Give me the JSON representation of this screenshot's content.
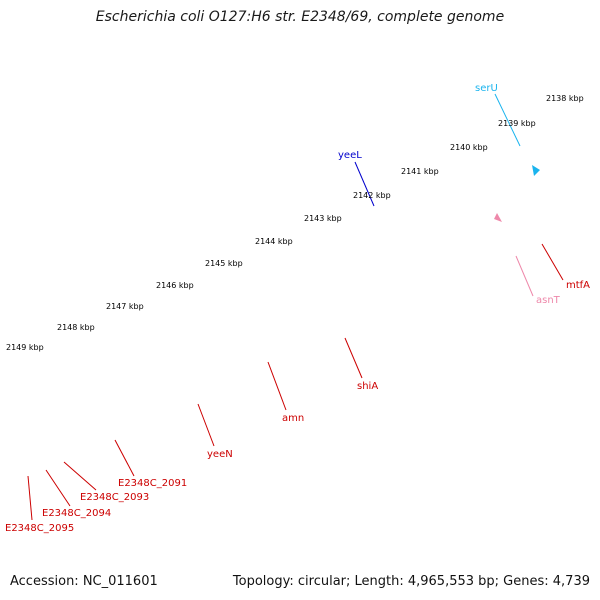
{
  "header": {
    "title": "Escherichia coli O127:H6 str. E2348/69, complete genome"
  },
  "footer": {
    "accession": "Accession: NC_011601",
    "topology": "Topology: circular; Length: 4,965,553 bp; Genes: 4,739"
  },
  "colors": {
    "backbone": "#808080",
    "tick": "#1e7a1e",
    "red_gene": "#ee0000",
    "gray_gene": "#6a6a6a",
    "olive_gene": "#6b8a1f",
    "blue_gene": "#0000ee",
    "cyan_gene": "#1ab4ee",
    "light_gray_gene": "#c8c8c8",
    "label_red": "#cc0000",
    "label_blue": "#0000cc",
    "label_cyan": "#1ab4ee",
    "label_pink": "#ee88aa"
  },
  "ruler": {
    "labels": [
      "2138 kbp",
      "2139 kbp",
      "2140 kbp",
      "2141 kbp",
      "2142 kbp",
      "2143 kbp",
      "2144 kbp",
      "2145 kbp",
      "2146 kbp",
      "2147 kbp",
      "2148 kbp",
      "2149 kbp"
    ]
  },
  "genes": [
    {
      "name": "serU",
      "color": "label_cyan"
    },
    {
      "name": "yeeL",
      "color": "label_blue"
    },
    {
      "name": "mtfA",
      "color": "label_red"
    },
    {
      "name": "asnT",
      "color": "label_pink"
    },
    {
      "name": "shiA",
      "color": "label_red"
    },
    {
      "name": "amn",
      "color": "label_red"
    },
    {
      "name": "yeeN",
      "color": "label_red"
    },
    {
      "name": "E2348C_2091",
      "color": "label_red"
    },
    {
      "name": "E2348C_2093",
      "color": "label_red"
    },
    {
      "name": "E2348C_2094",
      "color": "label_red"
    },
    {
      "name": "E2348C_2095",
      "color": "label_red"
    }
  ]
}
